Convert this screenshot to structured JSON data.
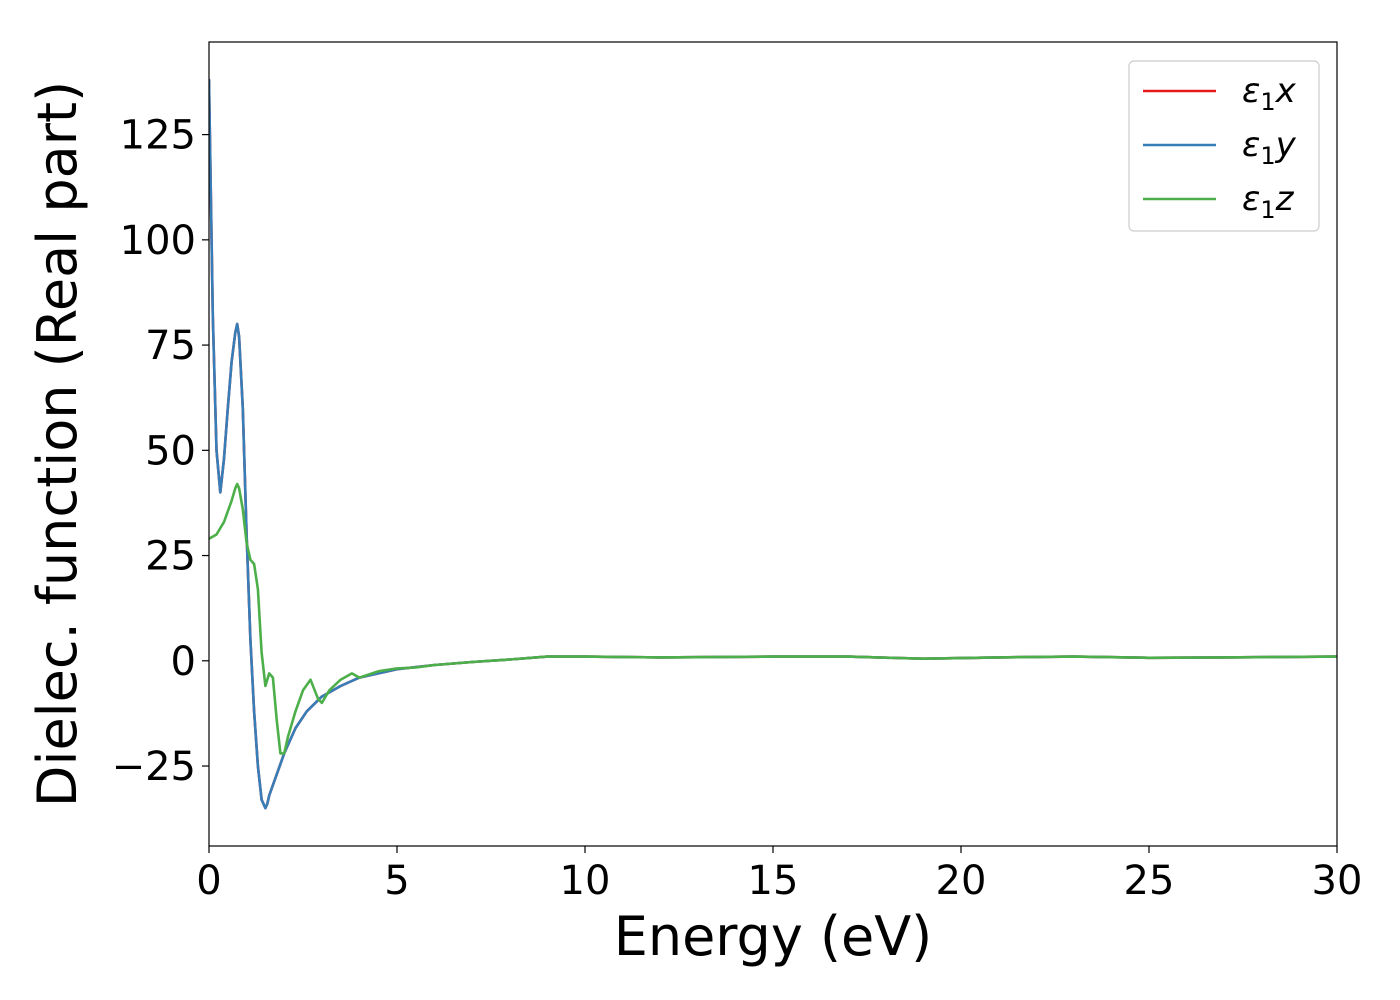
{
  "chart_data": {
    "type": "line",
    "xlabel": "Energy (eV)",
    "ylabel": "Dielec. function (Real part)",
    "xlim": [
      0,
      30
    ],
    "ylim": [
      -44,
      147
    ],
    "xticks": [
      0,
      5,
      10,
      15,
      20,
      25,
      30
    ],
    "xtick_labels": [
      "0",
      "5",
      "10",
      "15",
      "20",
      "25",
      "30"
    ],
    "yticks": [
      -25,
      0,
      25,
      50,
      75,
      100,
      125
    ],
    "ytick_labels": [
      "−25",
      "0",
      "25",
      "50",
      "75",
      "100",
      "125"
    ],
    "grid": false,
    "legend_position": "top-right",
    "series": [
      {
        "name": "ε₁x",
        "legend": {
          "base": "ε",
          "sub": "1",
          "var": "x"
        },
        "color": "#e41a1c",
        "x": [
          0,
          0.05,
          0.1,
          0.2,
          0.3,
          0.4,
          0.5,
          0.6,
          0.7,
          0.75,
          0.8,
          0.9,
          1.0,
          1.1,
          1.2,
          1.3,
          1.4,
          1.5,
          1.55,
          1.6,
          1.8,
          2.0,
          2.3,
          2.6,
          3.0,
          3.5,
          4.0,
          5.0,
          6.0,
          7.0,
          8.0,
          9.0,
          10.0,
          12.0,
          15.0,
          17.0,
          19.0,
          21.0,
          23.0,
          25.0,
          27.0,
          30.0
        ],
        "y": [
          138,
          110,
          82,
          50,
          40,
          48,
          60,
          71,
          78,
          80,
          77,
          60,
          30,
          5,
          -12,
          -25,
          -33,
          -35,
          -34,
          -32,
          -27,
          -22,
          -16,
          -12,
          -8.5,
          -6,
          -4,
          -2,
          -1,
          -0.3,
          0.3,
          1.0,
          1.0,
          0.8,
          1.0,
          1.0,
          0.5,
          0.8,
          1.0,
          0.7,
          0.8,
          1.0
        ]
      },
      {
        "name": "ε₁y",
        "legend": {
          "base": "ε",
          "sub": "1",
          "var": "y"
        },
        "color": "#377eb8",
        "x": [
          0,
          0.05,
          0.1,
          0.2,
          0.3,
          0.4,
          0.5,
          0.6,
          0.7,
          0.75,
          0.8,
          0.9,
          1.0,
          1.1,
          1.2,
          1.3,
          1.4,
          1.5,
          1.55,
          1.6,
          1.8,
          2.0,
          2.3,
          2.6,
          3.0,
          3.5,
          4.0,
          5.0,
          6.0,
          7.0,
          8.0,
          9.0,
          10.0,
          12.0,
          15.0,
          17.0,
          19.0,
          21.0,
          23.0,
          25.0,
          27.0,
          30.0
        ],
        "y": [
          138,
          110,
          82,
          50,
          40,
          48,
          60,
          71,
          78,
          80,
          77,
          60,
          30,
          5,
          -12,
          -25,
          -33,
          -35,
          -34,
          -32,
          -27,
          -22,
          -16,
          -12,
          -8.5,
          -6,
          -4,
          -2,
          -1,
          -0.3,
          0.3,
          1.0,
          1.0,
          0.8,
          1.0,
          1.0,
          0.5,
          0.8,
          1.0,
          0.7,
          0.8,
          1.0
        ]
      },
      {
        "name": "ε₁z",
        "legend": {
          "base": "ε",
          "sub": "1",
          "var": "z"
        },
        "color": "#4daf4a",
        "x": [
          0,
          0.2,
          0.4,
          0.6,
          0.7,
          0.75,
          0.8,
          0.9,
          1.0,
          1.1,
          1.2,
          1.3,
          1.4,
          1.5,
          1.6,
          1.7,
          1.8,
          1.9,
          2.0,
          2.1,
          2.3,
          2.5,
          2.7,
          2.9,
          3.0,
          3.2,
          3.5,
          3.8,
          4.0,
          4.5,
          5.0,
          5.5,
          6.0,
          7.0,
          8.0,
          9.0,
          10.0,
          12.0,
          15.0,
          17.0,
          19.0,
          21.0,
          23.0,
          25.0,
          27.0,
          30.0
        ],
        "y": [
          29,
          30,
          33,
          38,
          41,
          42,
          41,
          36,
          28,
          24,
          23,
          17,
          2,
          -6,
          -3,
          -4,
          -14,
          -22,
          -22,
          -18,
          -12,
          -7,
          -4.5,
          -9,
          -10,
          -7,
          -4.5,
          -3,
          -4,
          -2.5,
          -1.8,
          -1.6,
          -1.0,
          -0.3,
          0.3,
          1.0,
          1.0,
          0.8,
          1.0,
          1.0,
          0.5,
          0.8,
          1.0,
          0.7,
          0.8,
          1.0
        ]
      }
    ]
  }
}
